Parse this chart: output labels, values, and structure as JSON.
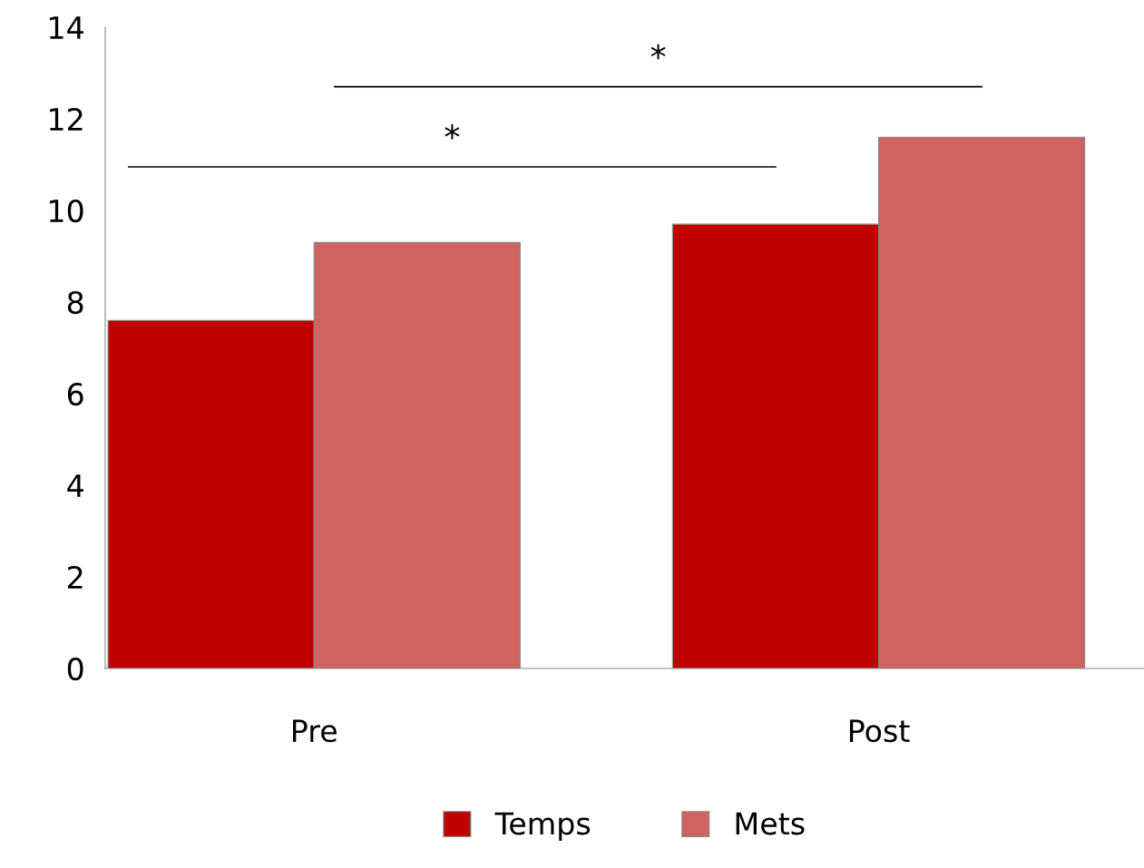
{
  "chart_data": {
    "type": "bar",
    "categories": [
      "Pre",
      "Post"
    ],
    "series": [
      {
        "name": "Temps",
        "color": "#c00000",
        "values": [
          7.6,
          9.7
        ]
      },
      {
        "name": "Mets",
        "color": "#d06262",
        "values": [
          9.3,
          11.6
        ]
      }
    ],
    "ylim": [
      0,
      14
    ],
    "yticks": [
      0,
      2,
      4,
      6,
      8,
      10,
      12,
      14
    ],
    "grid": false,
    "legend": "bottom",
    "annotations": [
      "*",
      "*"
    ]
  }
}
